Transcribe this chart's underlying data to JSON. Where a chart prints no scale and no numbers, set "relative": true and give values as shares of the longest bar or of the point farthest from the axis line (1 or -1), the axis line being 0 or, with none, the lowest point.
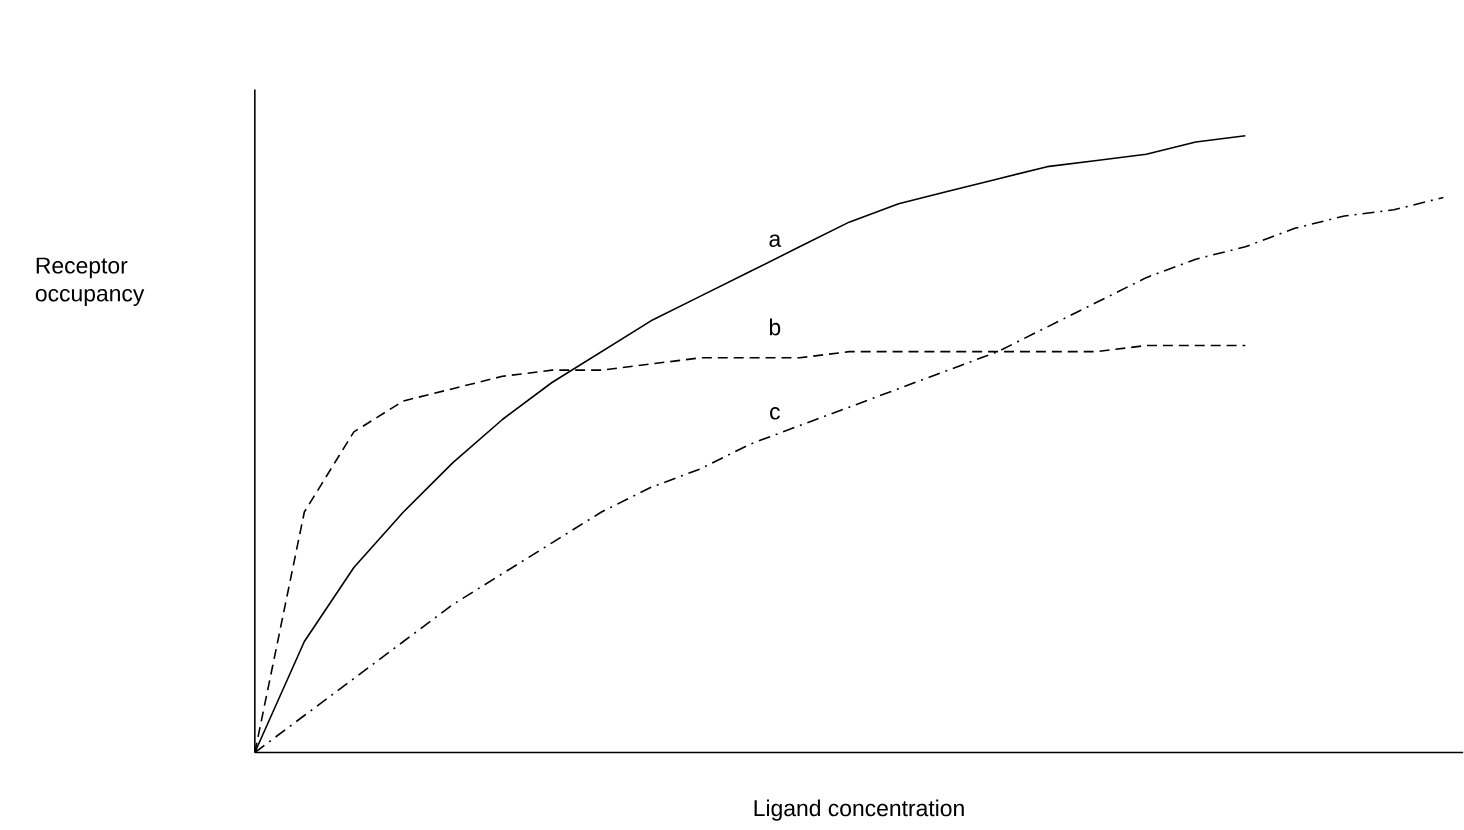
{
  "chart_data": {
    "type": "line",
    "relative": true,
    "xlabel": "Ligand concentration",
    "ylabel": "Receptor occupancy",
    "categories": [
      null,
      null,
      null,
      null,
      null,
      null,
      null,
      null,
      null,
      null,
      null,
      null,
      null,
      null,
      null,
      null,
      null,
      null,
      null,
      null,
      null,
      null,
      null,
      null,
      null
    ],
    "series": [
      {
        "name": "a",
        "color": "#000000",
        "line_style": "solid",
        "values": [
          0,
          0.18,
          0.3,
          0.39,
          0.47,
          0.54,
          0.6,
          0.65,
          0.7,
          0.74,
          0.78,
          0.82,
          0.86,
          0.89,
          0.91,
          0.93,
          0.95,
          0.96,
          0.97,
          0.99,
          1.0,
          null,
          null,
          null,
          null
        ]
      },
      {
        "name": "b",
        "color": "#000000",
        "line_style": "dashed",
        "values": [
          0,
          0.39,
          0.52,
          0.57,
          0.59,
          0.61,
          0.62,
          0.62,
          0.63,
          0.64,
          0.64,
          0.64,
          0.65,
          0.65,
          0.65,
          0.65,
          0.65,
          0.65,
          0.66,
          0.66,
          0.66,
          null,
          null,
          null,
          null
        ]
      },
      {
        "name": "c",
        "color": "#000000",
        "line_style": "dashdot",
        "values": [
          0,
          0.06,
          0.12,
          0.18,
          0.24,
          0.29,
          0.34,
          0.39,
          0.43,
          0.46,
          0.5,
          0.53,
          0.56,
          0.59,
          0.62,
          0.65,
          0.69,
          0.73,
          0.77,
          0.8,
          0.82,
          0.85,
          0.87,
          0.88,
          0.9
        ]
      }
    ]
  }
}
